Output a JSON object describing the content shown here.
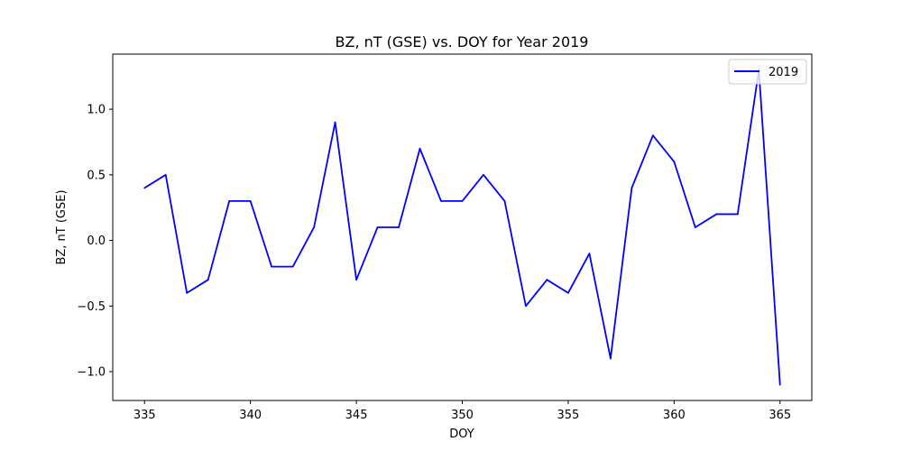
{
  "chart_data": {
    "type": "line",
    "title": "BZ, nT (GSE) vs. DOY for Year 2019",
    "xlabel": "DOY",
    "ylabel": "BZ, nT (GSE)",
    "xlim": [
      333.5,
      366.5
    ],
    "ylim": [
      -1.22,
      1.42
    ],
    "xticks": [
      335,
      340,
      345,
      350,
      355,
      360,
      365
    ],
    "yticks": [
      -1.0,
      -0.5,
      0.0,
      0.5,
      1.0
    ],
    "xtick_labels": [
      "335",
      "340",
      "345",
      "350",
      "355",
      "360",
      "365"
    ],
    "ytick_labels": [
      "−1.0",
      "−0.5",
      "0.0",
      "0.5",
      "1.0"
    ],
    "grid": false,
    "legend": {
      "position": "top-right",
      "entries": [
        "2019"
      ]
    },
    "series": [
      {
        "name": "2019",
        "color": "#0000ff",
        "x": [
          335,
          336,
          337,
          338,
          339,
          340,
          341,
          342,
          343,
          344,
          345,
          346,
          347,
          348,
          349,
          350,
          351,
          352,
          353,
          354,
          355,
          356,
          357,
          358,
          359,
          360,
          361,
          362,
          363,
          364,
          365
        ],
        "y": [
          0.4,
          0.5,
          -0.4,
          -0.3,
          0.3,
          0.3,
          -0.2,
          -0.2,
          0.1,
          0.9,
          -0.3,
          0.1,
          0.1,
          0.7,
          0.3,
          0.3,
          0.5,
          0.3,
          -0.5,
          -0.3,
          -0.4,
          -0.1,
          -0.9,
          0.4,
          0.8,
          0.6,
          0.1,
          0.2,
          0.2,
          1.3,
          -1.1
        ]
      }
    ]
  }
}
